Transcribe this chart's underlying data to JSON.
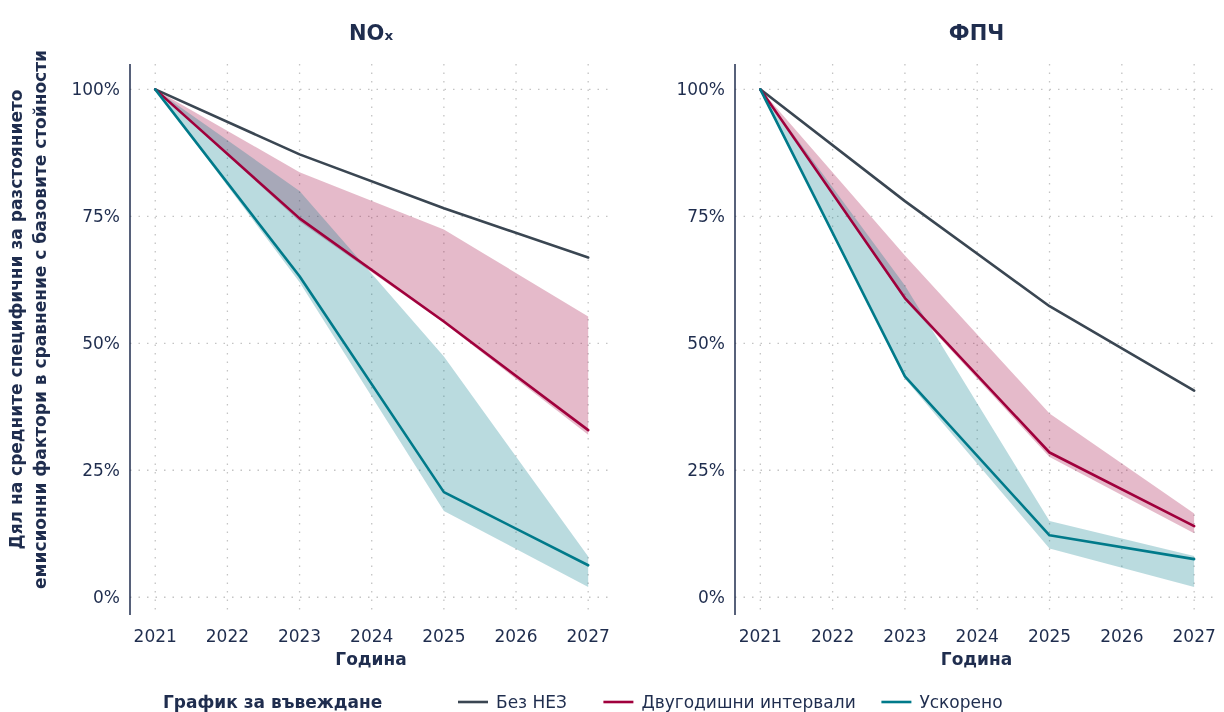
{
  "chart_data": [
    {
      "type": "line",
      "title": "NOₓ",
      "xlabel": "Година",
      "ylabel": "Дял на средните специфични за разстоянието емисионни фактори в сравнение с базовите стойности",
      "legend_title": "График за въвеждане",
      "legend": "bottom",
      "grid": true,
      "line_style": "solid",
      "marker": "none",
      "x": [
        2021,
        2023,
        2025,
        2027
      ],
      "xlim": [
        2020.65,
        2027.33
      ],
      "xticks": [
        2021,
        2022,
        2023,
        2024,
        2025,
        2026,
        2027
      ],
      "ylim": [
        -3.5,
        105
      ],
      "yticks": [
        {
          "value": 0,
          "label": "0%"
        },
        {
          "value": 25,
          "label": "25%"
        },
        {
          "value": 50,
          "label": "50%"
        },
        {
          "value": 75,
          "label": "75%"
        },
        {
          "value": 100,
          "label": "100%"
        }
      ],
      "series": [
        {
          "name": "Без НЕЗ",
          "color": "#3a4652",
          "values": [
            100,
            87.2,
            76.6,
            66.9
          ]
        },
        {
          "name": "Двугодишни интервали",
          "color": "#a0003c",
          "values": [
            100,
            74.6,
            54.3,
            32.9
          ],
          "lower": [
            100,
            74,
            54,
            32
          ],
          "upper": [
            100,
            83.7,
            72.4,
            55.3
          ]
        },
        {
          "name": "Ускорено",
          "color": "#007a8a",
          "values": [
            100,
            63.2,
            20.7,
            6.3
          ],
          "lower": [
            100,
            62,
            17,
            2
          ],
          "upper": [
            100,
            80,
            47.4,
            8
          ]
        }
      ]
    },
    {
      "type": "line",
      "title": "ФПЧ",
      "xlabel": "Година",
      "grid": true,
      "line_style": "solid",
      "marker": "none",
      "x": [
        2021,
        2023,
        2025,
        2027
      ],
      "xlim": [
        2020.65,
        2027.33
      ],
      "xticks": [
        2021,
        2022,
        2023,
        2024,
        2025,
        2026,
        2027
      ],
      "ylim": [
        -3.5,
        105
      ],
      "yticks": [
        {
          "value": 0,
          "label": "0%"
        },
        {
          "value": 25,
          "label": "25%"
        },
        {
          "value": 50,
          "label": "50%"
        },
        {
          "value": 75,
          "label": "75%"
        },
        {
          "value": 100,
          "label": "100%"
        }
      ],
      "series": [
        {
          "color": "#3a4652",
          "values": [
            100,
            78,
            57.3,
            40.7
          ]
        },
        {
          "color": "#a0003c",
          "values": [
            100,
            58.9,
            28.5,
            14
          ],
          "lower": [
            100,
            58.5,
            27.6,
            12.6
          ],
          "upper": [
            100,
            67.3,
            36.2,
            16.5
          ]
        },
        {
          "color": "#007a8a",
          "values": [
            100,
            43.5,
            12.2,
            7.5
          ],
          "lower": [
            100,
            43,
            9.6,
            2
          ],
          "upper": [
            100,
            61.4,
            15,
            8.1
          ]
        }
      ]
    }
  ]
}
